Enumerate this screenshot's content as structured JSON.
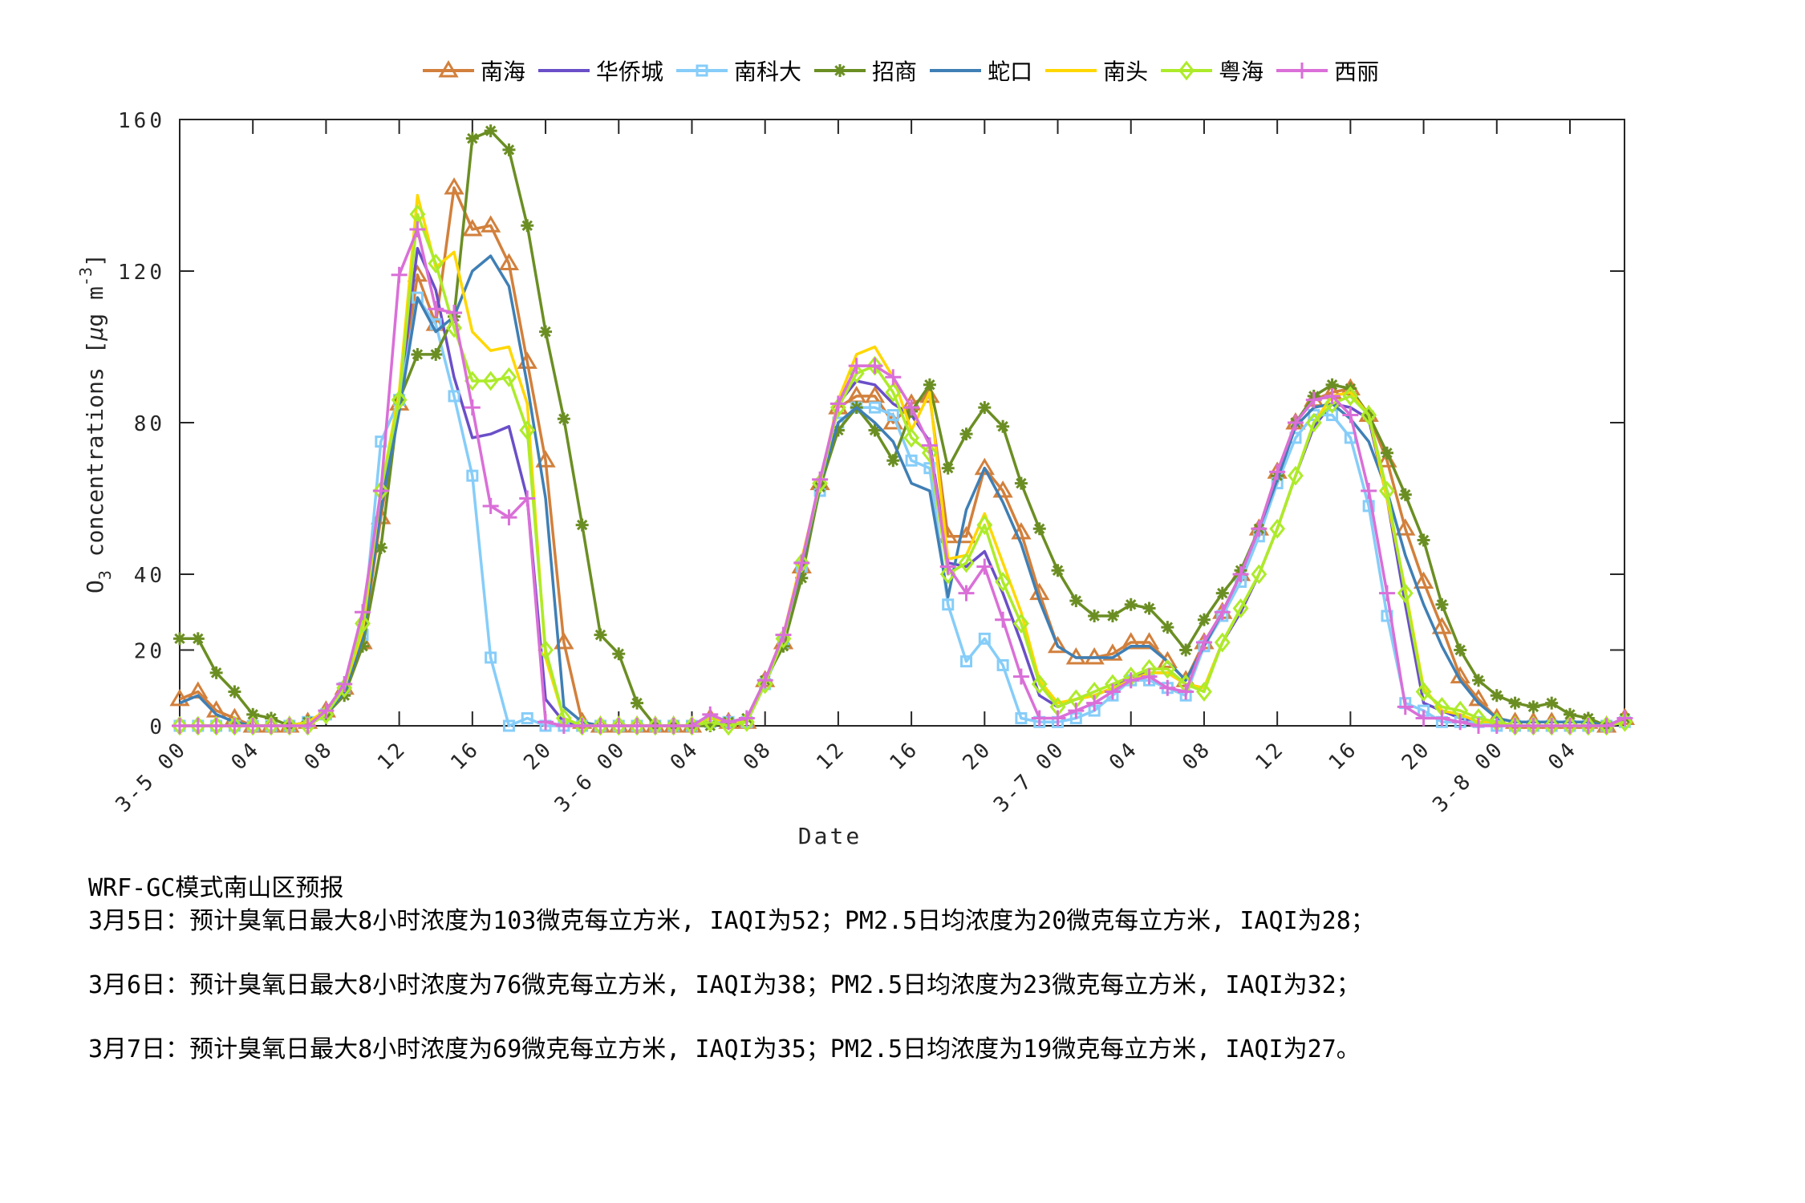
{
  "legend": {
    "items": [
      {
        "name": "南海",
        "color": "#D2803C",
        "marker": "triangle"
      },
      {
        "name": "华侨城",
        "color": "#6A4FC8",
        "marker": "none"
      },
      {
        "name": "南科大",
        "color": "#86CDF9",
        "marker": "square"
      },
      {
        "name": "招商",
        "color": "#6B8E23",
        "marker": "star"
      },
      {
        "name": "蛇口",
        "color": "#3F7FB5",
        "marker": "none"
      },
      {
        "name": "南头",
        "color": "#FFD700",
        "marker": "none"
      },
      {
        "name": "粤海",
        "color": "#ADEB2A",
        "marker": "diamond"
      },
      {
        "name": "西丽",
        "color": "#DA6FD8",
        "marker": "plus"
      }
    ]
  },
  "chart_data": {
    "type": "line",
    "title": "",
    "xlabel": "Date",
    "ylabel": "O3 concentrations [μg m-3]",
    "ylim": [
      0,
      160
    ],
    "yticks": [
      0,
      20,
      40,
      80,
      120,
      160
    ],
    "x_start": "3-5 00",
    "x_step_hours": 1,
    "xticks": [
      {
        "hour": 0,
        "label": "3-5 00"
      },
      {
        "hour": 4,
        "label": "04"
      },
      {
        "hour": 8,
        "label": "08"
      },
      {
        "hour": 12,
        "label": "12"
      },
      {
        "hour": 16,
        "label": "16"
      },
      {
        "hour": 20,
        "label": "20"
      },
      {
        "hour": 24,
        "label": "3-6 00"
      },
      {
        "hour": 28,
        "label": "04"
      },
      {
        "hour": 32,
        "label": "08"
      },
      {
        "hour": 36,
        "label": "12"
      },
      {
        "hour": 40,
        "label": "16"
      },
      {
        "hour": 44,
        "label": "20"
      },
      {
        "hour": 48,
        "label": "3-7 00"
      },
      {
        "hour": 52,
        "label": "04"
      },
      {
        "hour": 56,
        "label": "08"
      },
      {
        "hour": 60,
        "label": "12"
      },
      {
        "hour": 64,
        "label": "16"
      },
      {
        "hour": 68,
        "label": "20"
      },
      {
        "hour": 72,
        "label": "3-8 00"
      },
      {
        "hour": 76,
        "label": "04"
      }
    ],
    "grid": false,
    "legend_position": "top",
    "series": [
      {
        "name": "南海",
        "values": [
          7,
          9,
          4,
          2,
          0,
          0,
          0,
          1,
          4,
          10,
          22,
          55,
          85,
          119,
          106,
          142,
          131,
          132,
          122,
          96,
          70,
          22,
          1,
          0,
          0,
          0,
          0,
          0,
          0,
          2,
          1,
          1,
          12,
          22,
          42,
          64,
          84,
          87,
          87,
          80,
          85,
          87,
          50,
          50,
          68,
          62,
          51,
          35,
          21,
          18,
          18,
          19,
          22,
          22,
          17,
          12,
          22,
          30,
          40,
          52,
          67,
          80,
          86,
          88,
          89,
          82,
          70,
          52,
          38,
          26,
          13,
          7,
          2,
          1,
          1,
          1,
          1,
          1,
          0,
          2
        ]
      },
      {
        "name": "华侨城",
        "values": [
          0,
          0,
          0,
          0,
          0,
          0,
          0,
          1,
          3,
          10,
          24,
          60,
          86,
          126,
          115,
          92,
          76,
          77,
          79,
          60,
          7,
          1,
          0,
          0,
          0,
          0,
          0,
          0,
          0,
          2,
          1,
          1,
          12,
          24,
          42,
          64,
          85,
          91,
          90,
          85,
          82,
          75,
          43,
          42,
          46,
          35,
          22,
          8,
          5,
          7,
          8,
          10,
          13,
          14,
          14,
          11,
          10,
          22,
          30,
          40,
          52,
          66,
          79,
          85,
          84,
          81,
          60,
          32,
          6,
          4,
          2,
          1,
          1,
          0,
          0,
          0,
          0,
          0,
          0,
          1
        ]
      },
      {
        "name": "南科大",
        "values": [
          0,
          0,
          0,
          0,
          0,
          0,
          0,
          1,
          3,
          10,
          24,
          75,
          86,
          113,
          106,
          87,
          66,
          18,
          0,
          2,
          0,
          0,
          0,
          0,
          0,
          0,
          0,
          0,
          0,
          1,
          1,
          1,
          11,
          22,
          42,
          62,
          80,
          84,
          84,
          82,
          70,
          68,
          32,
          17,
          23,
          16,
          2,
          1,
          1,
          2,
          4,
          8,
          12,
          12,
          10,
          8,
          21,
          29,
          38,
          50,
          64,
          76,
          82,
          82,
          76,
          58,
          29,
          6,
          4,
          1,
          1,
          1,
          0,
          0,
          0,
          0,
          0,
          0,
          0,
          1
        ]
      },
      {
        "name": "招商",
        "values": [
          23,
          23,
          14,
          9,
          3,
          2,
          0,
          1,
          3,
          8,
          21,
          47,
          86,
          98,
          98,
          108,
          155,
          157,
          152,
          132,
          104,
          81,
          53,
          24,
          19,
          6,
          0,
          0,
          0,
          0,
          1,
          2,
          12,
          21,
          39,
          63,
          78,
          84,
          78,
          70,
          83,
          90,
          68,
          77,
          84,
          79,
          64,
          52,
          41,
          33,
          29,
          29,
          32,
          31,
          26,
          20,
          28,
          35,
          41,
          52,
          66,
          80,
          87,
          90,
          89,
          82,
          72,
          61,
          49,
          32,
          20,
          12,
          8,
          6,
          5,
          6,
          3,
          2,
          0,
          2
        ]
      },
      {
        "name": "蛇口",
        "values": [
          6,
          8,
          3,
          1,
          0,
          0,
          0,
          1,
          3,
          9,
          23,
          57,
          83,
          113,
          104,
          108,
          120,
          124,
          116,
          90,
          60,
          5,
          1,
          0,
          0,
          0,
          0,
          0,
          0,
          2,
          1,
          1,
          12,
          23,
          42,
          64,
          80,
          84,
          80,
          75,
          64,
          62,
          34,
          57,
          68,
          59,
          48,
          33,
          21,
          18,
          18,
          18,
          21,
          21,
          17,
          12,
          21,
          30,
          40,
          52,
          65,
          79,
          84,
          85,
          81,
          75,
          62,
          45,
          32,
          21,
          12,
          6,
          2,
          1,
          1,
          1,
          1,
          1,
          0,
          2
        ]
      },
      {
        "name": "南头",
        "values": [
          0,
          0,
          0,
          0,
          0,
          0,
          0,
          1,
          4,
          10,
          25,
          62,
          88,
          140,
          121,
          125,
          104,
          99,
          100,
          85,
          18,
          2,
          0,
          0,
          0,
          0,
          0,
          0,
          0,
          2,
          1,
          1,
          12,
          24,
          44,
          64,
          86,
          98,
          100,
          92,
          78,
          88,
          44,
          45,
          56,
          43,
          30,
          12,
          6,
          7,
          8,
          10,
          12,
          14,
          14,
          11,
          10,
          22,
          31,
          40,
          52,
          66,
          80,
          87,
          88,
          82,
          60,
          36,
          10,
          4,
          3,
          1,
          1,
          0,
          0,
          0,
          0,
          0,
          0,
          1
        ]
      },
      {
        "name": "粤海",
        "values": [
          0,
          0,
          0,
          0,
          0,
          0,
          0,
          0,
          3,
          10,
          27,
          62,
          86,
          135,
          122,
          105,
          91,
          91,
          92,
          78,
          20,
          2,
          0,
          0,
          0,
          0,
          0,
          0,
          0,
          1,
          0,
          1,
          11,
          23,
          43,
          64,
          84,
          93,
          95,
          88,
          76,
          72,
          40,
          43,
          53,
          38,
          27,
          11,
          5,
          7,
          9,
          11,
          13,
          15,
          15,
          11,
          9,
          22,
          31,
          40,
          52,
          66,
          80,
          85,
          87,
          82,
          62,
          35,
          9,
          5,
          4,
          2,
          1,
          0,
          0,
          0,
          0,
          0,
          0,
          1
        ]
      },
      {
        "name": "西丽",
        "values": [
          0,
          0,
          0,
          0,
          0,
          0,
          0,
          0,
          4,
          11,
          30,
          62,
          119,
          131,
          110,
          109,
          84,
          58,
          55,
          60,
          1,
          0,
          0,
          0,
          0,
          0,
          0,
          0,
          0,
          3,
          1,
          2,
          12,
          24,
          43,
          65,
          85,
          95,
          95,
          92,
          84,
          74,
          42,
          35,
          42,
          28,
          13,
          2,
          2,
          4,
          6,
          9,
          12,
          13,
          10,
          9,
          22,
          30,
          40,
          52,
          67,
          80,
          86,
          87,
          82,
          62,
          35,
          5,
          2,
          2,
          1,
          0,
          0,
          0,
          0,
          0,
          0,
          0,
          0,
          2
        ]
      }
    ]
  },
  "captions": {
    "title": "WRF-GC模式南山区预报",
    "line1": "3月5日：预计臭氧日最大8小时浓度为103微克每立方米, IAQI为52；PM2.5日均浓度为20微克每立方米, IAQI为28；",
    "line2": "3月6日：预计臭氧日最大8小时浓度为76微克每立方米, IAQI为38；PM2.5日均浓度为23微克每立方米, IAQI为32；",
    "line3": "3月7日：预计臭氧日最大8小时浓度为69微克每立方米, IAQI为35；PM2.5日均浓度为19微克每立方米, IAQI为27。"
  }
}
